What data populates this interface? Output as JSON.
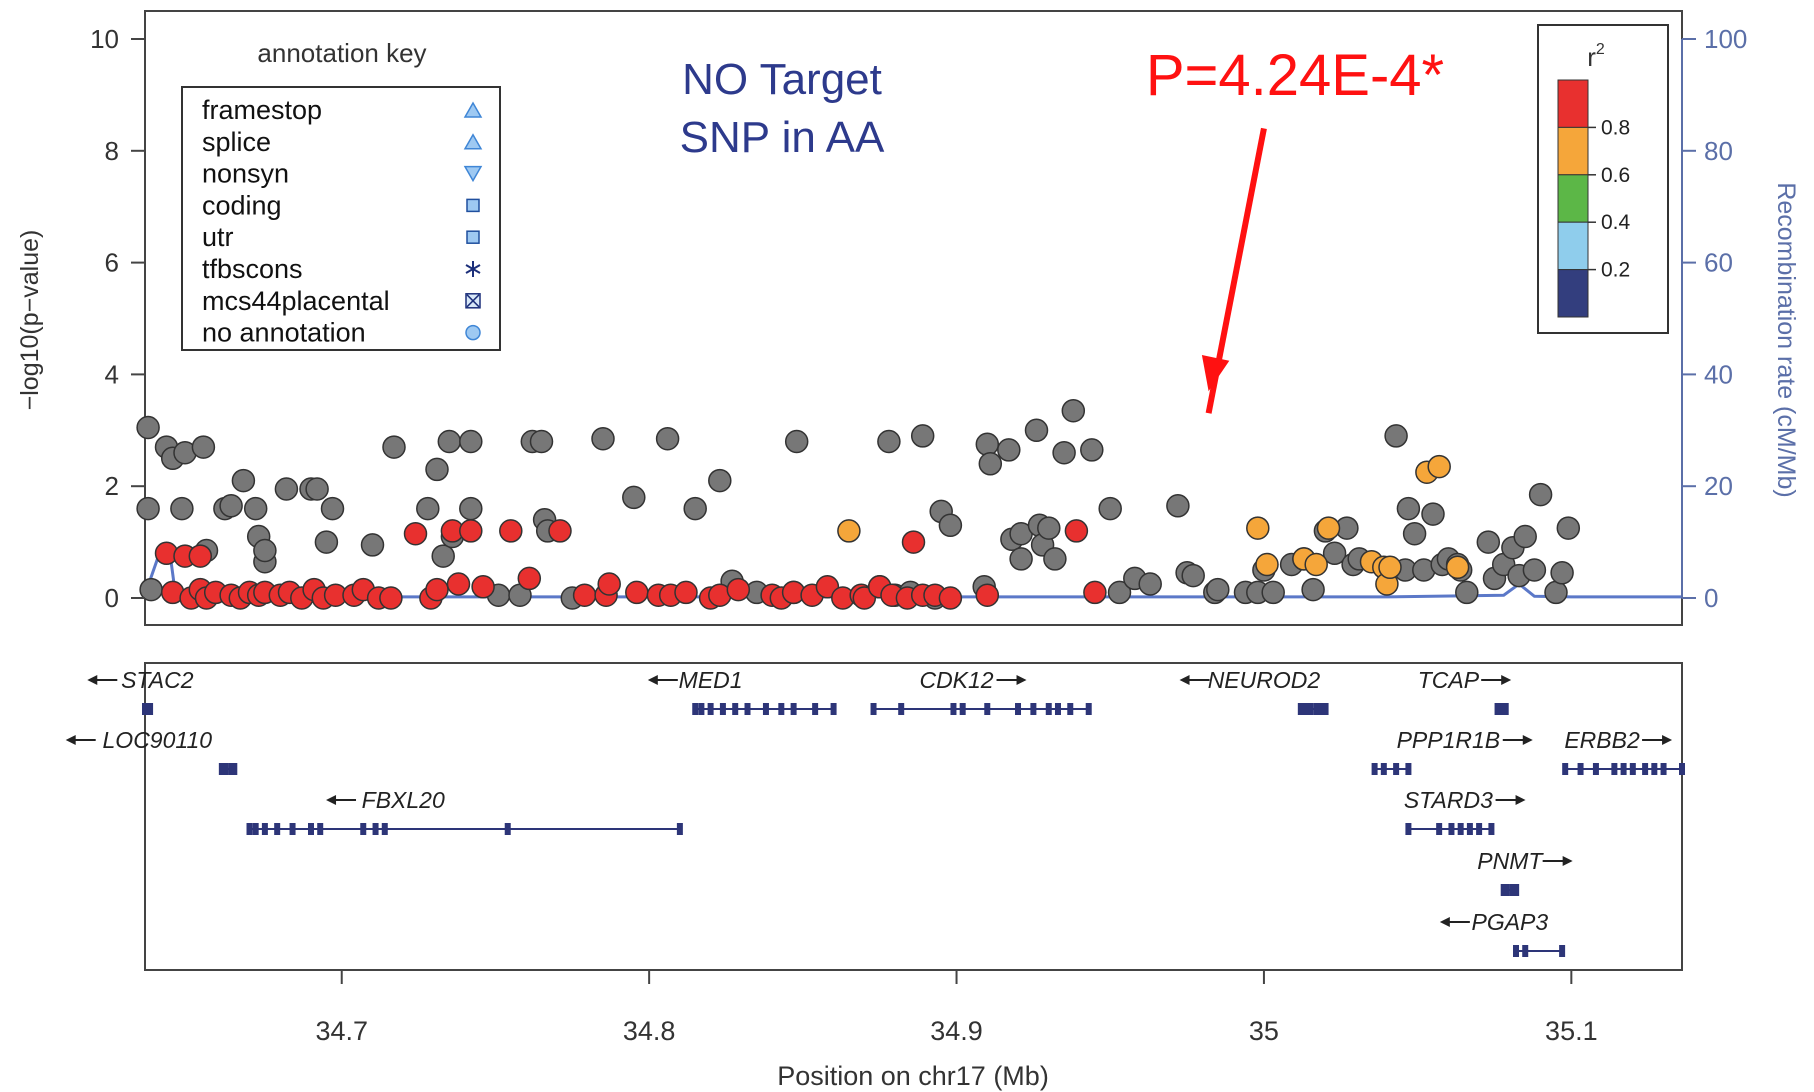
{
  "chart_data": {
    "type": "scatter",
    "title": "",
    "xlabel": "Position on chr17 (Mb)",
    "ylabel_left": "−log10(p−value)",
    "ylabel_right": "Recombination rate (cM/Mb)",
    "xlim": [
      34.636,
      35.136
    ],
    "ylim_left": [
      0,
      10
    ],
    "ylim_right": [
      0,
      100
    ],
    "x_ticks": [
      "34.7",
      "34.8",
      "34.9",
      "35",
      "35.1"
    ],
    "x_tick_values": [
      34.7,
      34.8,
      34.9,
      35.0,
      35.1
    ],
    "y_ticks_left": [
      "0",
      "2",
      "4",
      "6",
      "8",
      "10"
    ],
    "y_ticks_right": [
      "0",
      "20",
      "40",
      "60",
      "80",
      "100"
    ],
    "annotations": {
      "note_line1": "NO Target",
      "note_line2": "SNP in AA",
      "pvalue": "P=4.24E-4*",
      "arrow_target": {
        "x": 34.982,
        "y": 3.7
      },
      "arrow_from": {
        "x": 35.0,
        "y": 8.4
      }
    },
    "legend_annotation": {
      "title": "annotation key",
      "placement": "top-left",
      "items": [
        {
          "label": "framestop",
          "symbol": "triangle-up"
        },
        {
          "label": "splice",
          "symbol": "triangle-up"
        },
        {
          "label": "nonsyn",
          "symbol": "triangle-down"
        },
        {
          "label": "coding",
          "symbol": "square"
        },
        {
          "label": "utr",
          "symbol": "square"
        },
        {
          "label": "tfbscons",
          "symbol": "asterisk"
        },
        {
          "label": "mcs44placental",
          "symbol": "boxed-x"
        },
        {
          "label": "no annotation",
          "symbol": "circle"
        }
      ]
    },
    "legend_r2": {
      "title": "r",
      "title_sup": "2",
      "placement": "top-right",
      "tick_labels": [
        "0.8",
        "0.6",
        "0.4",
        "0.2"
      ],
      "colors": [
        "#e8302f",
        "#f5a63a",
        "#5cb747",
        "#8fcdec",
        "#333e7e"
      ]
    },
    "colors": {
      "red": "#e8302f",
      "orange": "#f5a63a",
      "gray": "#7a7a7a",
      "recomb": "#5b78c8",
      "axis_right": "#5b6fa8",
      "annotation_text": "#2d3a8c",
      "highlight": "#ff1111",
      "gene": "#2d3578"
    },
    "series": [
      {
        "color_key": "gray",
        "points": [
          [
            34.637,
            3.05
          ],
          [
            34.637,
            1.6
          ],
          [
            34.638,
            0.15
          ],
          [
            34.643,
            2.7
          ],
          [
            34.645,
            2.5
          ],
          [
            34.648,
            1.6
          ],
          [
            34.649,
            2.6
          ],
          [
            34.655,
            2.7
          ],
          [
            34.656,
            0.85
          ],
          [
            34.662,
            1.6
          ],
          [
            34.664,
            1.65
          ],
          [
            34.668,
            2.1
          ],
          [
            34.672,
            1.6
          ],
          [
            34.673,
            1.1
          ],
          [
            34.675,
            0.65
          ],
          [
            34.675,
            0.85
          ],
          [
            34.682,
            1.95
          ],
          [
            34.69,
            1.95
          ],
          [
            34.692,
            1.95
          ],
          [
            34.695,
            1.0
          ],
          [
            34.697,
            1.6
          ],
          [
            34.71,
            0.95
          ],
          [
            34.717,
            2.7
          ],
          [
            34.728,
            1.6
          ],
          [
            34.731,
            2.3
          ],
          [
            34.733,
            0.75
          ],
          [
            34.735,
            2.8
          ],
          [
            34.736,
            1.1
          ],
          [
            34.742,
            1.6
          ],
          [
            34.742,
            2.8
          ],
          [
            34.751,
            0.05
          ],
          [
            34.758,
            0.05
          ],
          [
            34.762,
            2.8
          ],
          [
            34.765,
            2.8
          ],
          [
            34.766,
            1.4
          ],
          [
            34.767,
            1.2
          ],
          [
            34.775,
            0.0
          ],
          [
            34.785,
            2.85
          ],
          [
            34.795,
            1.8
          ],
          [
            34.806,
            2.85
          ],
          [
            34.815,
            1.6
          ],
          [
            34.823,
            2.1
          ],
          [
            34.827,
            0.3
          ],
          [
            34.835,
            0.1
          ],
          [
            34.847,
            0.1
          ],
          [
            34.848,
            2.8
          ],
          [
            34.875,
            0.2
          ],
          [
            34.878,
            2.8
          ],
          [
            34.889,
            2.9
          ],
          [
            34.88,
            0.05
          ],
          [
            34.885,
            0.1
          ],
          [
            34.893,
            0.0
          ],
          [
            34.895,
            1.55
          ],
          [
            34.898,
            1.3
          ],
          [
            34.909,
            0.2
          ],
          [
            34.91,
            2.75
          ],
          [
            34.911,
            2.4
          ],
          [
            34.917,
            2.65
          ],
          [
            34.918,
            1.05
          ],
          [
            34.921,
            1.15
          ],
          [
            34.921,
            0.7
          ],
          [
            34.926,
            3.0
          ],
          [
            34.927,
            1.3
          ],
          [
            34.928,
            0.95
          ],
          [
            34.93,
            1.25
          ],
          [
            34.932,
            0.7
          ],
          [
            34.935,
            2.6
          ],
          [
            34.938,
            3.35
          ],
          [
            34.944,
            2.65
          ],
          [
            34.95,
            1.6
          ],
          [
            34.953,
            0.1
          ],
          [
            34.958,
            0.35
          ],
          [
            34.963,
            0.25
          ],
          [
            34.972,
            1.65
          ],
          [
            34.975,
            0.45
          ],
          [
            34.977,
            0.4
          ],
          [
            34.984,
            0.1
          ],
          [
            34.985,
            0.15
          ],
          [
            34.994,
            0.1
          ],
          [
            34.998,
            0.1
          ],
          [
            35.0,
            0.5
          ],
          [
            35.003,
            0.1
          ],
          [
            35.009,
            0.6
          ],
          [
            35.013,
            0.7
          ],
          [
            35.016,
            0.15
          ],
          [
            35.02,
            1.2
          ],
          [
            35.023,
            0.8
          ],
          [
            35.027,
            1.25
          ],
          [
            35.029,
            0.6
          ],
          [
            35.031,
            0.7
          ],
          [
            35.043,
            2.9
          ],
          [
            35.046,
            0.5
          ],
          [
            35.047,
            1.6
          ],
          [
            35.049,
            1.15
          ],
          [
            35.052,
            0.5
          ],
          [
            35.055,
            1.5
          ],
          [
            35.058,
            0.6
          ],
          [
            35.06,
            0.7
          ],
          [
            35.063,
            0.6
          ],
          [
            35.064,
            0.5
          ],
          [
            35.066,
            0.1
          ],
          [
            35.073,
            1.0
          ],
          [
            35.075,
            0.35
          ],
          [
            35.078,
            0.6
          ],
          [
            35.081,
            0.9
          ],
          [
            35.083,
            0.4
          ],
          [
            35.085,
            1.1
          ],
          [
            35.088,
            0.5
          ],
          [
            35.09,
            1.85
          ],
          [
            35.095,
            0.1
          ],
          [
            35.097,
            0.45
          ],
          [
            35.099,
            1.25
          ]
        ]
      },
      {
        "color_key": "red",
        "points": [
          [
            34.643,
            0.8
          ],
          [
            34.645,
            0.1
          ],
          [
            34.649,
            0.75
          ],
          [
            34.651,
            0.0
          ],
          [
            34.654,
            0.75
          ],
          [
            34.654,
            0.15
          ],
          [
            34.656,
            0.0
          ],
          [
            34.659,
            0.1
          ],
          [
            34.664,
            0.05
          ],
          [
            34.667,
            0.0
          ],
          [
            34.67,
            0.1
          ],
          [
            34.673,
            0.05
          ],
          [
            34.675,
            0.1
          ],
          [
            34.68,
            0.05
          ],
          [
            34.683,
            0.1
          ],
          [
            34.687,
            0.0
          ],
          [
            34.691,
            0.15
          ],
          [
            34.694,
            0.0
          ],
          [
            34.698,
            0.05
          ],
          [
            34.704,
            0.05
          ],
          [
            34.707,
            0.15
          ],
          [
            34.712,
            0.0
          ],
          [
            34.716,
            0.0
          ],
          [
            34.724,
            1.15
          ],
          [
            34.729,
            0.0
          ],
          [
            34.731,
            0.15
          ],
          [
            34.736,
            1.2
          ],
          [
            34.738,
            0.25
          ],
          [
            34.742,
            1.2
          ],
          [
            34.746,
            0.2
          ],
          [
            34.755,
            1.2
          ],
          [
            34.761,
            0.35
          ],
          [
            34.771,
            1.2
          ],
          [
            34.779,
            0.05
          ],
          [
            34.786,
            0.05
          ],
          [
            34.787,
            0.25
          ],
          [
            34.796,
            0.1
          ],
          [
            34.803,
            0.05
          ],
          [
            34.807,
            0.05
          ],
          [
            34.812,
            0.1
          ],
          [
            34.82,
            0.0
          ],
          [
            34.823,
            0.05
          ],
          [
            34.829,
            0.15
          ],
          [
            34.84,
            0.05
          ],
          [
            34.843,
            0.0
          ],
          [
            34.847,
            0.1
          ],
          [
            34.853,
            0.05
          ],
          [
            34.858,
            0.2
          ],
          [
            34.863,
            0.0
          ],
          [
            34.869,
            0.05
          ],
          [
            34.87,
            0.0
          ],
          [
            34.875,
            0.2
          ],
          [
            34.879,
            0.05
          ],
          [
            34.884,
            0.0
          ],
          [
            34.886,
            1.0
          ],
          [
            34.889,
            0.05
          ],
          [
            34.893,
            0.05
          ],
          [
            34.898,
            0.0
          ],
          [
            34.91,
            0.05
          ],
          [
            34.939,
            1.2
          ],
          [
            34.945,
            0.1
          ]
        ]
      },
      {
        "color_key": "orange",
        "points": [
          [
            34.865,
            1.2
          ],
          [
            34.998,
            1.25
          ],
          [
            35.001,
            0.6
          ],
          [
            35.013,
            0.7
          ],
          [
            35.017,
            0.6
          ],
          [
            35.021,
            1.25
          ],
          [
            35.035,
            0.65
          ],
          [
            35.039,
            0.55
          ],
          [
            35.04,
            0.25
          ],
          [
            35.041,
            0.55
          ],
          [
            35.053,
            2.25
          ],
          [
            35.057,
            2.35
          ],
          [
            35.063,
            0.55
          ]
        ]
      }
    ],
    "recombination": {
      "x": [
        34.636,
        34.641,
        34.644,
        34.646,
        34.649,
        34.654,
        34.66,
        34.664,
        34.67,
        34.7,
        34.8,
        34.9,
        35.0,
        35.04,
        35.078,
        35.083,
        35.088,
        35.1,
        35.136
      ],
      "y": [
        0.6,
        8.5,
        8.5,
        0.3,
        0.7,
        0.7,
        0.5,
        0.2,
        0.2,
        0.2,
        0.2,
        0.2,
        0.2,
        0.2,
        0.5,
        2.5,
        0.3,
        0.2,
        0.2
      ]
    },
    "genes": [
      {
        "name": "STAC2",
        "dir": "left",
        "row": 0,
        "start": 34.636,
        "end": 34.637,
        "label_x": 34.64
      },
      {
        "name": "LOC90110",
        "dir": "left",
        "row": 1,
        "start": 34.661,
        "end": 34.664,
        "label_x": 34.64
      },
      {
        "name": "FBXL20",
        "dir": "left",
        "row": 2,
        "start": 34.67,
        "end": 34.81,
        "label_x": 34.72,
        "exons": [
          34.67,
          34.672,
          34.675,
          34.679,
          34.684,
          34.69,
          34.693,
          34.707,
          34.711,
          34.714,
          34.754,
          34.81
        ]
      },
      {
        "name": "MED1",
        "dir": "left",
        "row": 0,
        "start": 34.815,
        "end": 34.86,
        "label_x": 34.82,
        "exons": [
          34.815,
          34.817,
          34.82,
          34.824,
          34.828,
          34.832,
          34.838,
          34.843,
          34.847,
          34.854,
          34.86
        ]
      },
      {
        "name": "CDK12",
        "dir": "right",
        "row": 0,
        "start": 34.873,
        "end": 34.943,
        "label_x": 34.9,
        "exons": [
          34.873,
          34.882,
          34.899,
          34.902,
          34.91,
          34.92,
          34.925,
          34.93,
          34.933,
          34.937,
          34.943
        ]
      },
      {
        "name": "NEUROD2",
        "dir": "left",
        "row": 0,
        "start": 35.012,
        "end": 35.017,
        "label_x": 35.0
      },
      {
        "name": "TCAP",
        "dir": "right",
        "row": 0,
        "start": 35.076,
        "end": 35.078,
        "label_x": 35.06
      },
      {
        "name": "PPP1R1B",
        "dir": "right",
        "row": 1,
        "start": 35.036,
        "end": 35.047,
        "label_x": 35.06,
        "exons": [
          35.036,
          35.039,
          35.043,
          35.047
        ]
      },
      {
        "name": "ERBB2",
        "dir": "right",
        "row": 1,
        "start": 35.098,
        "end": 35.136,
        "label_x": 35.11,
        "exons": [
          35.098,
          35.103,
          35.108,
          35.114,
          35.117,
          35.12,
          35.124,
          35.127,
          35.13,
          35.136
        ]
      },
      {
        "name": "STARD3",
        "dir": "right",
        "row": 2,
        "start": 35.047,
        "end": 35.074,
        "label_x": 35.06,
        "exons": [
          35.047,
          35.057,
          35.061,
          35.064,
          35.067,
          35.07,
          35.074
        ]
      },
      {
        "name": "PNMT",
        "dir": "right",
        "row": 3,
        "start": 35.078,
        "end": 35.081,
        "label_x": 35.08
      },
      {
        "name": "PGAP3",
        "dir": "left",
        "row": 4,
        "start": 35.082,
        "end": 35.097,
        "label_x": 35.08,
        "exons": [
          35.082,
          35.085,
          35.097
        ]
      }
    ]
  }
}
